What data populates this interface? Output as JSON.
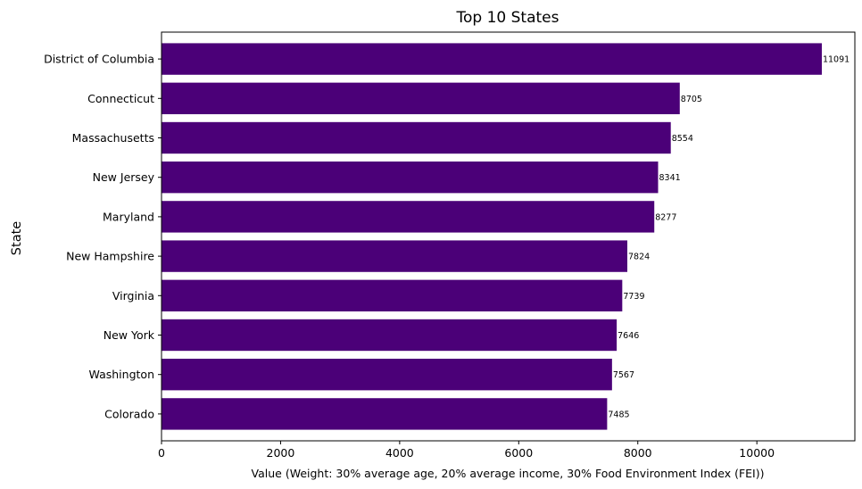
{
  "chart_data": {
    "type": "bar",
    "orientation": "horizontal",
    "title": "Top 10 States",
    "xlabel": "Value (Weight: 30% average age, 20% average income, 30% Food Environment Index (FEI))",
    "ylabel": "State",
    "categories": [
      "District of Columbia",
      "Connecticut",
      "Massachusetts",
      "New Jersey",
      "Maryland",
      "New Hampshire",
      "Virginia",
      "New York",
      "Washington",
      "Colorado"
    ],
    "values": [
      11091,
      8705,
      8554,
      8341,
      8277,
      7824,
      7739,
      7646,
      7567,
      7485
    ],
    "xlim": [
      0,
      11646
    ],
    "xticks": [
      0,
      2000,
      4000,
      6000,
      8000,
      10000
    ],
    "bar_color": "#4b0078",
    "grid": false,
    "data_labels": true
  }
}
